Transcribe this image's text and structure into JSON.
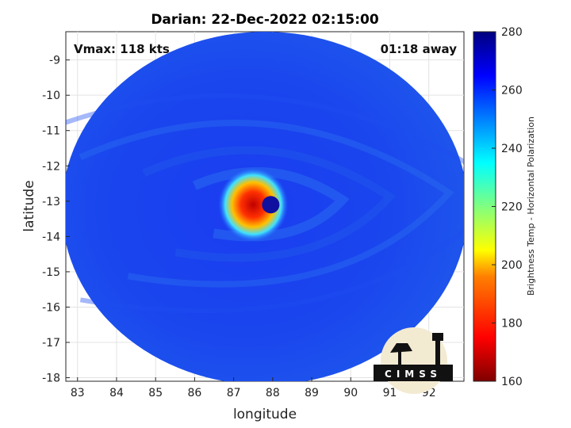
{
  "chart_data": {
    "type": "heatmap",
    "title": "Darian: 22-Dec-2022 02:15:00",
    "xlabel": "longitude",
    "ylabel": "latitude",
    "xlim": [
      82.7,
      92.9
    ],
    "ylim": [
      -18.1,
      -8.2
    ],
    "xticks": [
      83,
      84,
      85,
      86,
      87,
      88,
      89,
      90,
      91,
      92
    ],
    "xtick_labels": [
      "83",
      "84",
      "85",
      "86",
      "87",
      "88",
      "89",
      "90",
      "91",
      "92"
    ],
    "yticks": [
      -9,
      -10,
      -11,
      -12,
      -13,
      -14,
      -15,
      -16,
      -17,
      -18
    ],
    "ytick_labels": [
      "-9",
      "-10",
      "-11",
      "-12",
      "-13",
      "-14",
      "-15",
      "-16",
      "-17",
      "-18"
    ],
    "grid": true,
    "annotations": {
      "vmax": "Vmax: 118 kts",
      "away": "01:18 away"
    },
    "storm_center": {
      "lon": 87.95,
      "lat": -13.1
    },
    "swath_center": {
      "lon": 87.8,
      "lat": -13.2
    },
    "colorbar": {
      "label": "Brightness Temp - Horizontal Polarization",
      "range": [
        160,
        280
      ],
      "ticks": [
        160,
        180,
        200,
        220,
        240,
        260,
        280
      ],
      "tick_labels": [
        "160",
        "180",
        "200",
        "220",
        "240",
        "260",
        "280"
      ],
      "colormap": [
        "#7f0000",
        "#ff0000",
        "#ff8000",
        "#ffff00",
        "#80ff80",
        "#00ffff",
        "#0080ff",
        "#0000ff",
        "#00007f"
      ]
    },
    "logo_text": "CIMSS"
  }
}
